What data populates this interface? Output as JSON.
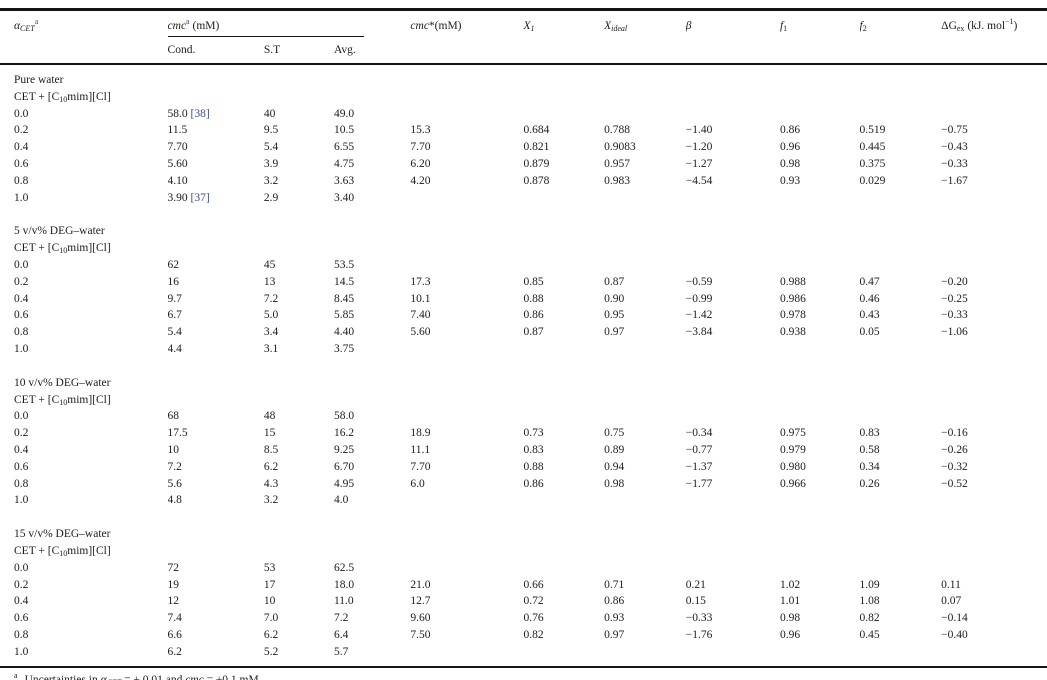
{
  "colors": {
    "citation_blue": "#3b4a9b",
    "text": "#1c1c1c",
    "rule": "#151515",
    "background": "#ffffff"
  },
  "table": {
    "group_header": {
      "id": "cmc-group",
      "segments": [
        {
          "s": "i",
          "t": "cmc"
        },
        {
          "s": "sup",
          "t": "a",
          "c": "ref"
        },
        {
          "t": " (mM)"
        }
      ]
    },
    "columns": [
      {
        "id": "alpha",
        "segments": [
          {
            "s": "i",
            "t": "α"
          },
          {
            "s": "isub",
            "t": "CET"
          },
          {
            "s": "sup",
            "t": "a",
            "c": "ref"
          }
        ]
      },
      {
        "id": "cond",
        "segments": [
          {
            "t": "Cond."
          }
        ]
      },
      {
        "id": "st",
        "segments": [
          {
            "t": "S.T"
          }
        ]
      },
      {
        "id": "avg",
        "segments": [
          {
            "t": "Avg."
          }
        ]
      },
      {
        "id": "cmcstar",
        "segments": [
          {
            "s": "i",
            "t": "cmc"
          },
          {
            "t": "*(mM)"
          }
        ]
      },
      {
        "id": "x1",
        "segments": [
          {
            "s": "i",
            "t": "X"
          },
          {
            "s": "isub",
            "t": "1"
          }
        ]
      },
      {
        "id": "xideal",
        "segments": [
          {
            "s": "i",
            "t": "X"
          },
          {
            "s": "isub",
            "t": "ideal"
          }
        ]
      },
      {
        "id": "beta",
        "segments": [
          {
            "s": "i",
            "t": "β"
          }
        ]
      },
      {
        "id": "f1",
        "segments": [
          {
            "s": "i",
            "t": "f"
          },
          {
            "s": "sub",
            "t": "1"
          }
        ]
      },
      {
        "id": "f2",
        "segments": [
          {
            "s": "i",
            "t": "f"
          },
          {
            "s": "sub",
            "t": "2"
          }
        ]
      },
      {
        "id": "dgex",
        "segments": [
          {
            "t": "ΔG"
          },
          {
            "s": "sub",
            "t": "ex"
          },
          {
            "t": " (kJ. mol"
          },
          {
            "s": "sup",
            "t": "−1"
          },
          {
            "t": ")"
          }
        ]
      }
    ],
    "system_segments": [
      {
        "t": "CET + [C"
      },
      {
        "s": "sub",
        "t": "10"
      },
      {
        "t": "mim][Cl]"
      }
    ],
    "sections": [
      {
        "title": "Pure water",
        "rows": [
          {
            "cells": [
              "0.0",
              "58.0",
              "40",
              "49.0",
              "",
              "",
              "",
              "",
              "",
              "",
              ""
            ],
            "cond_ref": "[38]"
          },
          {
            "cells": [
              "0.2",
              "11.5",
              "9.5",
              "10.5",
              "15.3",
              "0.684",
              "0.788",
              "−1.40",
              "0.86",
              "0.519",
              "−0.75"
            ]
          },
          {
            "cells": [
              "0.4",
              "7.70",
              "5.4",
              "6.55",
              "7.70",
              "0.821",
              "0.9083",
              "−1.20",
              "0.96",
              "0.445",
              "−0.43"
            ]
          },
          {
            "cells": [
              "0.6",
              "5.60",
              "3.9",
              "4.75",
              "6.20",
              "0.879",
              "0.957",
              "−1.27",
              "0.98",
              "0.375",
              "−0.33"
            ]
          },
          {
            "cells": [
              "0.8",
              "4.10",
              "3.2",
              "3.63",
              "4.20",
              "0.878",
              "0.983",
              "−4.54",
              "0.93",
              "0.029",
              "−1.67"
            ]
          },
          {
            "cells": [
              "1.0",
              "3.90",
              "2.9",
              "3.40",
              "",
              "",
              "",
              "",
              "",
              "",
              ""
            ],
            "cond_ref": "[37]"
          }
        ]
      },
      {
        "title": "5 v/v% DEG–water",
        "rows": [
          {
            "cells": [
              "0.0",
              "62",
              "45",
              "53.5",
              "",
              "",
              "",
              "",
              "",
              "",
              ""
            ]
          },
          {
            "cells": [
              "0.2",
              "16",
              "13",
              "14.5",
              "17.3",
              "0.85",
              "0.87",
              "−0.59",
              "0.988",
              "0.47",
              "−0.20"
            ]
          },
          {
            "cells": [
              "0.4",
              "9.7",
              "7.2",
              "8.45",
              "10.1",
              "0.88",
              "0.90",
              "−0.99",
              "0.986",
              "0.46",
              "−0.25"
            ]
          },
          {
            "cells": [
              "0.6",
              "6.7",
              "5.0",
              "5.85",
              "7.40",
              "0.86",
              "0.95",
              "−1.42",
              "0.978",
              "0.43",
              "−0.33"
            ]
          },
          {
            "cells": [
              "0.8",
              "5.4",
              "3.4",
              "4.40",
              "5.60",
              "0.87",
              "0.97",
              "−3.84",
              "0.938",
              "0.05",
              "−1.06"
            ]
          },
          {
            "cells": [
              "1.0",
              "4.4",
              "3.1",
              "3.75",
              "",
              "",
              "",
              "",
              "",
              "",
              ""
            ]
          }
        ]
      },
      {
        "title": "10 v/v% DEG–water",
        "rows": [
          {
            "cells": [
              "0.0",
              "68",
              "48",
              "58.0",
              "",
              "",
              "",
              "",
              "",
              "",
              ""
            ]
          },
          {
            "cells": [
              "0.2",
              "17.5",
              "15",
              "16.2",
              "18.9",
              "0.73",
              "0.75",
              "−0.34",
              "0.975",
              "0.83",
              "−0.16"
            ]
          },
          {
            "cells": [
              "0.4",
              "10",
              "8.5",
              "9.25",
              "11.1",
              "0.83",
              "0.89",
              "−0.77",
              "0.979",
              "0.58",
              "−0.26"
            ]
          },
          {
            "cells": [
              "0.6",
              "7.2",
              "6.2",
              "6.70",
              "7.70",
              "0.88",
              "0.94",
              "−1.37",
              "0.980",
              "0.34",
              "−0.32"
            ]
          },
          {
            "cells": [
              "0.8",
              "5.6",
              "4.3",
              "4.95",
              "6.0",
              "0.86",
              "0.98",
              "−1.77",
              "0.966",
              "0.26",
              "−0.52"
            ]
          },
          {
            "cells": [
              "1.0",
              "4.8",
              "3.2",
              "4.0",
              "",
              "",
              "",
              "",
              "",
              "",
              ""
            ]
          }
        ]
      },
      {
        "title": "15 v/v% DEG–water",
        "rows": [
          {
            "cells": [
              "0.0",
              "72",
              "53",
              "62.5",
              "",
              "",
              "",
              "",
              "",
              "",
              ""
            ]
          },
          {
            "cells": [
              "0.2",
              "19",
              "17",
              "18.0",
              "21.0",
              "0.66",
              "0.71",
              "0.21",
              "1.02",
              "1.09",
              "0.11"
            ]
          },
          {
            "cells": [
              "0.4",
              "12",
              "10",
              "11.0",
              "12.7",
              "0.72",
              "0.86",
              "0.15",
              "1.01",
              "1.08",
              "0.07"
            ]
          },
          {
            "cells": [
              "0.6",
              "7.4",
              "7.0",
              "7.2",
              "9.60",
              "0.76",
              "0.93",
              "−0.33",
              "0.98",
              "0.82",
              "−0.14"
            ]
          },
          {
            "cells": [
              "0.8",
              "6.6",
              "6.2",
              "6.4",
              "7.50",
              "0.82",
              "0.97",
              "−1.76",
              "0.96",
              "0.45",
              "−0.40"
            ]
          },
          {
            "cells": [
              "1.0",
              "6.2",
              "5.2",
              "5.7",
              "",
              "",
              "",
              "",
              "",
              "",
              ""
            ]
          }
        ]
      }
    ],
    "footnote": {
      "segments": [
        {
          "s": "sup",
          "t": "a"
        },
        {
          "t": "Uncertainties in "
        },
        {
          "s": "i",
          "t": "α"
        },
        {
          "s": "isub",
          "t": "CET"
        },
        {
          "t": " = ± 0.01 and "
        },
        {
          "s": "i",
          "t": "cmc"
        },
        {
          "t": " = ±0.1 mM."
        }
      ]
    }
  }
}
